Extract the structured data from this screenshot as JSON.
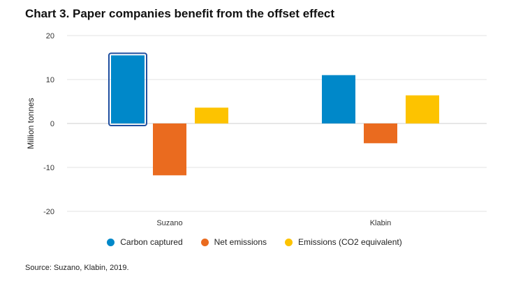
{
  "title": "Chart 3. Paper companies benefit from the offset effect",
  "source": "Source: Suzano, Klabin, 2019.",
  "chart_data": {
    "type": "bar",
    "categories": [
      "Suzano",
      "Klabin"
    ],
    "series": [
      {
        "name": "Carbon captured",
        "values": [
          15.5,
          11.0
        ],
        "color": "#0088c9"
      },
      {
        "name": "Net emissions",
        "values": [
          -11.8,
          -4.5
        ],
        "color": "#ea6b1f"
      },
      {
        "name": "Emissions (CO2 equivalent)",
        "values": [
          3.6,
          6.4
        ],
        "color": "#fdc300"
      }
    ],
    "ylabel": "Million tonnes",
    "ylim": [
      -20,
      20
    ],
    "yticks": [
      20,
      10,
      0,
      -10,
      -20
    ],
    "grid": true,
    "legend": "bottom"
  }
}
